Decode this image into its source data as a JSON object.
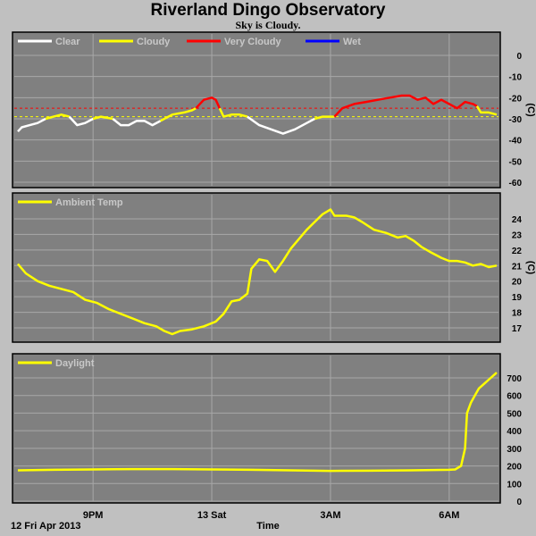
{
  "title": "Riverland Dingo Observatory",
  "subtitle": "Sky is Cloudy.",
  "footer": {
    "date": "12 Fri Apr 2013",
    "xlabel": "Time"
  },
  "colors": {
    "plot_bg": "#808080",
    "page_bg": "#c0c0c0",
    "grid": "#a8a8a8",
    "clear": "#ffffff",
    "cloudy": "#ffff00",
    "very_cloudy": "#ff0000",
    "wet": "#0000ff",
    "series": "#ffff00"
  },
  "x_ticks": [
    {
      "hour": 21,
      "label": "9PM"
    },
    {
      "hour": 24,
      "label": "13 Sat"
    },
    {
      "hour": 27,
      "label": "3AM"
    },
    {
      "hour": 30,
      "label": "6AM"
    }
  ],
  "x_range": [
    19.1,
    31.2
  ],
  "chart_data": [
    {
      "type": "line",
      "name": "sky",
      "legend": [
        {
          "label": "Clear",
          "color": "#ffffff"
        },
        {
          "label": "Cloudy",
          "color": "#ffff00"
        },
        {
          "label": "Very Cloudy",
          "color": "#ff0000"
        },
        {
          "label": "Wet",
          "color": "#0000ff"
        }
      ],
      "ylabel": "(C)",
      "ylim": [
        -60,
        10
      ],
      "yticks": [
        0,
        -10,
        -20,
        -30,
        -40,
        -50,
        -60
      ],
      "thresholds": [
        {
          "y": -25,
          "color": "#ff0000"
        },
        {
          "y": -29,
          "color": "#ffff00"
        }
      ],
      "segments": [
        {
          "state": "Clear",
          "points": [
            [
              19.1,
              -36
            ],
            [
              19.2,
              -34
            ],
            [
              19.4,
              -33
            ],
            [
              19.6,
              -32
            ],
            [
              19.8,
              -30
            ]
          ]
        },
        {
          "state": "Cloudy",
          "points": [
            [
              19.8,
              -30
            ],
            [
              20.0,
              -29
            ],
            [
              20.2,
              -28
            ],
            [
              20.4,
              -29
            ]
          ]
        },
        {
          "state": "Clear",
          "points": [
            [
              20.4,
              -29
            ],
            [
              20.6,
              -33
            ],
            [
              20.8,
              -32
            ],
            [
              21.0,
              -30
            ]
          ]
        },
        {
          "state": "Cloudy",
          "points": [
            [
              21.0,
              -30
            ],
            [
              21.2,
              -29
            ],
            [
              21.5,
              -30
            ]
          ]
        },
        {
          "state": "Clear",
          "points": [
            [
              21.5,
              -30
            ],
            [
              21.7,
              -33
            ],
            [
              21.9,
              -33
            ],
            [
              22.1,
              -31
            ],
            [
              22.3,
              -31
            ],
            [
              22.5,
              -33
            ],
            [
              22.7,
              -31
            ]
          ]
        },
        {
          "state": "Cloudy",
          "points": [
            [
              22.7,
              -31
            ],
            [
              23.0,
              -28
            ],
            [
              23.3,
              -27
            ],
            [
              23.5,
              -26
            ],
            [
              23.6,
              -25
            ]
          ]
        },
        {
          "state": "Very Cloudy",
          "points": [
            [
              23.6,
              -25
            ],
            [
              23.8,
              -21
            ],
            [
              24.0,
              -20
            ],
            [
              24.1,
              -21
            ],
            [
              24.2,
              -25
            ]
          ]
        },
        {
          "state": "Cloudy",
          "points": [
            [
              24.2,
              -25
            ],
            [
              24.3,
              -29
            ],
            [
              24.5,
              -28
            ],
            [
              24.7,
              -28
            ],
            [
              24.9,
              -29
            ]
          ]
        },
        {
          "state": "Clear",
          "points": [
            [
              24.9,
              -29
            ],
            [
              25.2,
              -33
            ],
            [
              25.5,
              -35
            ],
            [
              25.8,
              -37
            ],
            [
              26.1,
              -35
            ],
            [
              26.4,
              -32
            ],
            [
              26.6,
              -30
            ]
          ]
        },
        {
          "state": "Cloudy",
          "points": [
            [
              26.6,
              -30
            ],
            [
              26.8,
              -29
            ],
            [
              27.1,
              -29
            ]
          ]
        },
        {
          "state": "Very Cloudy",
          "points": [
            [
              27.1,
              -29
            ],
            [
              27.3,
              -25
            ],
            [
              27.6,
              -23
            ],
            [
              27.9,
              -22
            ],
            [
              28.2,
              -21
            ],
            [
              28.5,
              -20
            ],
            [
              28.8,
              -19
            ],
            [
              29.0,
              -19
            ],
            [
              29.2,
              -21
            ],
            [
              29.4,
              -20
            ],
            [
              29.6,
              -23
            ],
            [
              29.8,
              -21
            ],
            [
              30.0,
              -23
            ],
            [
              30.2,
              -25
            ],
            [
              30.4,
              -22
            ],
            [
              30.6,
              -23
            ],
            [
              30.7,
              -24
            ]
          ]
        },
        {
          "state": "Cloudy",
          "points": [
            [
              30.7,
              -24
            ],
            [
              30.8,
              -27
            ],
            [
              31.0,
              -27
            ],
            [
              31.2,
              -28
            ]
          ]
        }
      ]
    },
    {
      "type": "line",
      "name": "ambient",
      "legend": [
        {
          "label": "Ambient Temp",
          "color": "#ffff00"
        }
      ],
      "ylabel": "(C)",
      "ylim": [
        16,
        25
      ],
      "yticks": [
        17,
        18,
        19,
        20,
        21,
        22,
        23,
        24
      ],
      "points": [
        [
          19.1,
          21.1
        ],
        [
          19.3,
          20.5
        ],
        [
          19.6,
          20.0
        ],
        [
          19.9,
          19.7
        ],
        [
          20.2,
          19.5
        ],
        [
          20.5,
          19.3
        ],
        [
          20.8,
          18.8
        ],
        [
          21.1,
          18.6
        ],
        [
          21.4,
          18.2
        ],
        [
          21.7,
          17.9
        ],
        [
          22.0,
          17.6
        ],
        [
          22.3,
          17.3
        ],
        [
          22.6,
          17.1
        ],
        [
          22.8,
          16.8
        ],
        [
          23.0,
          16.6
        ],
        [
          23.2,
          16.8
        ],
        [
          23.5,
          16.9
        ],
        [
          23.8,
          17.1
        ],
        [
          24.1,
          17.4
        ],
        [
          24.3,
          17.9
        ],
        [
          24.5,
          18.7
        ],
        [
          24.7,
          18.8
        ],
        [
          24.9,
          19.2
        ],
        [
          25.0,
          20.8
        ],
        [
          25.2,
          21.4
        ],
        [
          25.4,
          21.3
        ],
        [
          25.6,
          20.6
        ],
        [
          25.8,
          21.3
        ],
        [
          26.0,
          22.1
        ],
        [
          26.2,
          22.7
        ],
        [
          26.4,
          23.3
        ],
        [
          26.6,
          23.8
        ],
        [
          26.8,
          24.3
        ],
        [
          27.0,
          24.6
        ],
        [
          27.1,
          24.2
        ],
        [
          27.4,
          24.2
        ],
        [
          27.6,
          24.1
        ],
        [
          27.8,
          23.8
        ],
        [
          28.1,
          23.3
        ],
        [
          28.4,
          23.1
        ],
        [
          28.7,
          22.8
        ],
        [
          28.9,
          22.9
        ],
        [
          29.1,
          22.6
        ],
        [
          29.3,
          22.2
        ],
        [
          29.5,
          21.9
        ],
        [
          29.8,
          21.5
        ],
        [
          30.0,
          21.3
        ],
        [
          30.2,
          21.3
        ],
        [
          30.4,
          21.2
        ],
        [
          30.6,
          21.0
        ],
        [
          30.8,
          21.1
        ],
        [
          31.0,
          20.9
        ],
        [
          31.2,
          21.0
        ]
      ]
    },
    {
      "type": "line",
      "name": "daylight",
      "legend": [
        {
          "label": "Daylight",
          "color": "#ffff00"
        }
      ],
      "ylim": [
        0,
        780
      ],
      "yticks": [
        0,
        100,
        200,
        300,
        400,
        500,
        600,
        700
      ],
      "points": [
        [
          19.1,
          175
        ],
        [
          20.0,
          178
        ],
        [
          21.0,
          180
        ],
        [
          22.0,
          182
        ],
        [
          23.0,
          182
        ],
        [
          24.0,
          180
        ],
        [
          25.0,
          178
        ],
        [
          26.0,
          175
        ],
        [
          27.0,
          172
        ],
        [
          28.0,
          173
        ],
        [
          29.0,
          175
        ],
        [
          30.0,
          178
        ],
        [
          30.15,
          180
        ],
        [
          30.3,
          200
        ],
        [
          30.4,
          300
        ],
        [
          30.45,
          500
        ],
        [
          30.55,
          560
        ],
        [
          30.65,
          600
        ],
        [
          30.75,
          640
        ],
        [
          30.9,
          670
        ],
        [
          31.0,
          690
        ],
        [
          31.2,
          730
        ]
      ]
    }
  ]
}
